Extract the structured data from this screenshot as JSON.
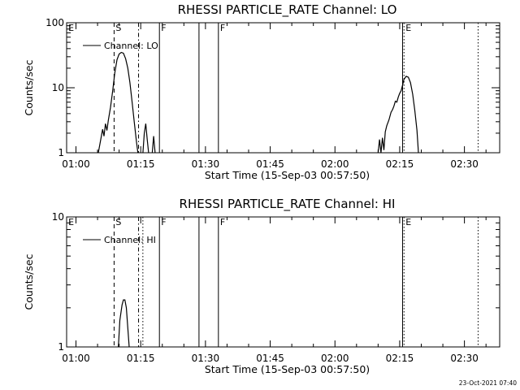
{
  "footer": {
    "timestamp": "23-Oct-2021 07:40"
  },
  "chart_data": [
    {
      "type": "line",
      "title": "RHESSI PARTICLE_RATE Channel: LO",
      "xlabel": "Start Time (15-Sep-03 00:57:50)",
      "ylabel": "Counts/sec",
      "yscale": "log",
      "ylim": [
        1,
        100
      ],
      "y_ticks": [
        {
          "value": 1,
          "label": "1"
        },
        {
          "value": 10,
          "label": "10"
        },
        {
          "value": 100,
          "label": "100"
        }
      ],
      "xlim": [
        "00:57:50",
        "02:38:10"
      ],
      "x_ticks": [
        {
          "time": "01:00",
          "label": "01:00"
        },
        {
          "time": "01:15",
          "label": "01:15"
        },
        {
          "time": "01:30",
          "label": "01:30"
        },
        {
          "time": "01:45",
          "label": "01:45"
        },
        {
          "time": "02:00",
          "label": "02:00"
        },
        {
          "time": "02:15",
          "label": "02:15"
        },
        {
          "time": "02:30",
          "label": "02:30"
        }
      ],
      "legend": {
        "label": "Channel: LO",
        "position": "top-left"
      },
      "series": [
        {
          "name": "Channel: LO",
          "color": "#000000",
          "points": [
            [
              "01:05:10",
              1
            ],
            [
              "01:05:40",
              1.5
            ],
            [
              "01:06:10",
              2.3
            ],
            [
              "01:06:30",
              1.8
            ],
            [
              "01:06:50",
              2.8
            ],
            [
              "01:07:10",
              2.2
            ],
            [
              "01:07:30",
              3.2
            ],
            [
              "01:08:00",
              5
            ],
            [
              "01:08:30",
              9
            ],
            [
              "01:09:00",
              17
            ],
            [
              "01:09:30",
              27
            ],
            [
              "01:10:00",
              33
            ],
            [
              "01:10:30",
              35
            ],
            [
              "01:11:00",
              34
            ],
            [
              "01:11:30",
              28
            ],
            [
              "01:12:00",
              20
            ],
            [
              "01:12:30",
              12
            ],
            [
              "01:13:00",
              6
            ],
            [
              "01:13:30",
              3
            ],
            [
              "01:14:00",
              1.5
            ],
            [
              "01:14:20",
              1
            ],
            null,
            [
              "01:15:30",
              1
            ],
            [
              "01:15:50",
              2
            ],
            [
              "01:16:10",
              2.8
            ],
            [
              "01:16:30",
              1.6
            ],
            [
              "01:16:50",
              1
            ],
            null,
            [
              "01:17:40",
              1
            ],
            [
              "01:18:00",
              1.8
            ],
            [
              "01:18:20",
              1
            ],
            null,
            [
              "02:10:00",
              1
            ],
            [
              "02:10:20",
              1.6
            ],
            [
              "02:10:40",
              1
            ],
            [
              "02:11:00",
              1.7
            ],
            [
              "02:11:20",
              1.1
            ],
            [
              "02:11:40",
              2.1
            ],
            [
              "02:12:00",
              2.6
            ],
            [
              "02:12:30",
              3.2
            ],
            [
              "02:13:00",
              4.2
            ],
            [
              "02:13:20",
              4.6
            ],
            [
              "02:13:40",
              5.2
            ],
            [
              "02:14:00",
              6.2
            ],
            [
              "02:14:20",
              6
            ],
            [
              "02:14:40",
              7.2
            ],
            [
              "02:15:00",
              8.2
            ],
            [
              "02:15:20",
              9
            ],
            [
              "02:15:40",
              11
            ],
            [
              "02:16:00",
              13.5
            ],
            [
              "02:16:30",
              15
            ],
            [
              "02:17:00",
              14.5
            ],
            [
              "02:17:30",
              12
            ],
            [
              "02:18:00",
              8
            ],
            [
              "02:18:30",
              4.5
            ],
            [
              "02:19:00",
              2.2
            ],
            [
              "02:19:20",
              1
            ]
          ]
        }
      ],
      "event_markers": [
        {
          "time": "00:57:52",
          "flag": "E",
          "style": "none"
        },
        {
          "time": "01:08:50",
          "flag": "S",
          "style": "dashed"
        },
        {
          "time": "01:14:30",
          "flag": "",
          "style": "dashdot"
        },
        {
          "time": "01:19:20",
          "flag": "F",
          "style": "solid"
        },
        {
          "time": "01:28:30",
          "flag": "",
          "style": "solid"
        },
        {
          "time": "01:33:00",
          "flag": "F",
          "style": "solid"
        },
        {
          "time": "02:15:40",
          "flag": "",
          "style": "solid"
        },
        {
          "time": "02:16:00",
          "flag": "E",
          "style": "dotted"
        },
        {
          "time": "02:33:10",
          "flag": "",
          "style": "dotted"
        }
      ]
    },
    {
      "type": "line",
      "title": "RHESSI PARTICLE_RATE Channel: HI",
      "xlabel": "Start Time (15-Sep-03 00:57:50)",
      "ylabel": "Counts/sec",
      "yscale": "log",
      "ylim": [
        1,
        10
      ],
      "y_ticks": [
        {
          "value": 1,
          "label": "1"
        },
        {
          "value": 10,
          "label": "10"
        }
      ],
      "xlim": [
        "00:57:50",
        "02:38:10"
      ],
      "x_ticks": [
        {
          "time": "01:00",
          "label": "01:00"
        },
        {
          "time": "01:15",
          "label": "01:15"
        },
        {
          "time": "01:30",
          "label": "01:30"
        },
        {
          "time": "01:45",
          "label": "01:45"
        },
        {
          "time": "02:00",
          "label": "02:00"
        },
        {
          "time": "02:15",
          "label": "02:15"
        },
        {
          "time": "02:30",
          "label": "02:30"
        }
      ],
      "legend": {
        "label": "Channel: HI",
        "position": "top-left"
      },
      "series": [
        {
          "name": "Channel: HI",
          "color": "#000000",
          "points": [
            [
              "01:09:50",
              1
            ],
            [
              "01:10:10",
              1.6
            ],
            [
              "01:10:40",
              2.1
            ],
            [
              "01:11:00",
              2.3
            ],
            [
              "01:11:20",
              2.3
            ],
            [
              "01:11:40",
              2.0
            ],
            [
              "01:12:00",
              1.4
            ],
            [
              "01:12:20",
              1
            ]
          ]
        }
      ],
      "event_markers": [
        {
          "time": "00:57:52",
          "flag": "E",
          "style": "none"
        },
        {
          "time": "01:08:50",
          "flag": "S",
          "style": "dashed"
        },
        {
          "time": "01:14:30",
          "flag": "",
          "style": "dashdot"
        },
        {
          "time": "01:15:30",
          "flag": "",
          "style": "dotted"
        },
        {
          "time": "01:19:20",
          "flag": "F",
          "style": "solid"
        },
        {
          "time": "01:28:30",
          "flag": "",
          "style": "solid"
        },
        {
          "time": "01:33:00",
          "flag": "F",
          "style": "solid"
        },
        {
          "time": "02:15:40",
          "flag": "",
          "style": "solid"
        },
        {
          "time": "02:16:00",
          "flag": "E",
          "style": "dotted"
        },
        {
          "time": "02:33:10",
          "flag": "",
          "style": "dotted"
        }
      ]
    }
  ]
}
